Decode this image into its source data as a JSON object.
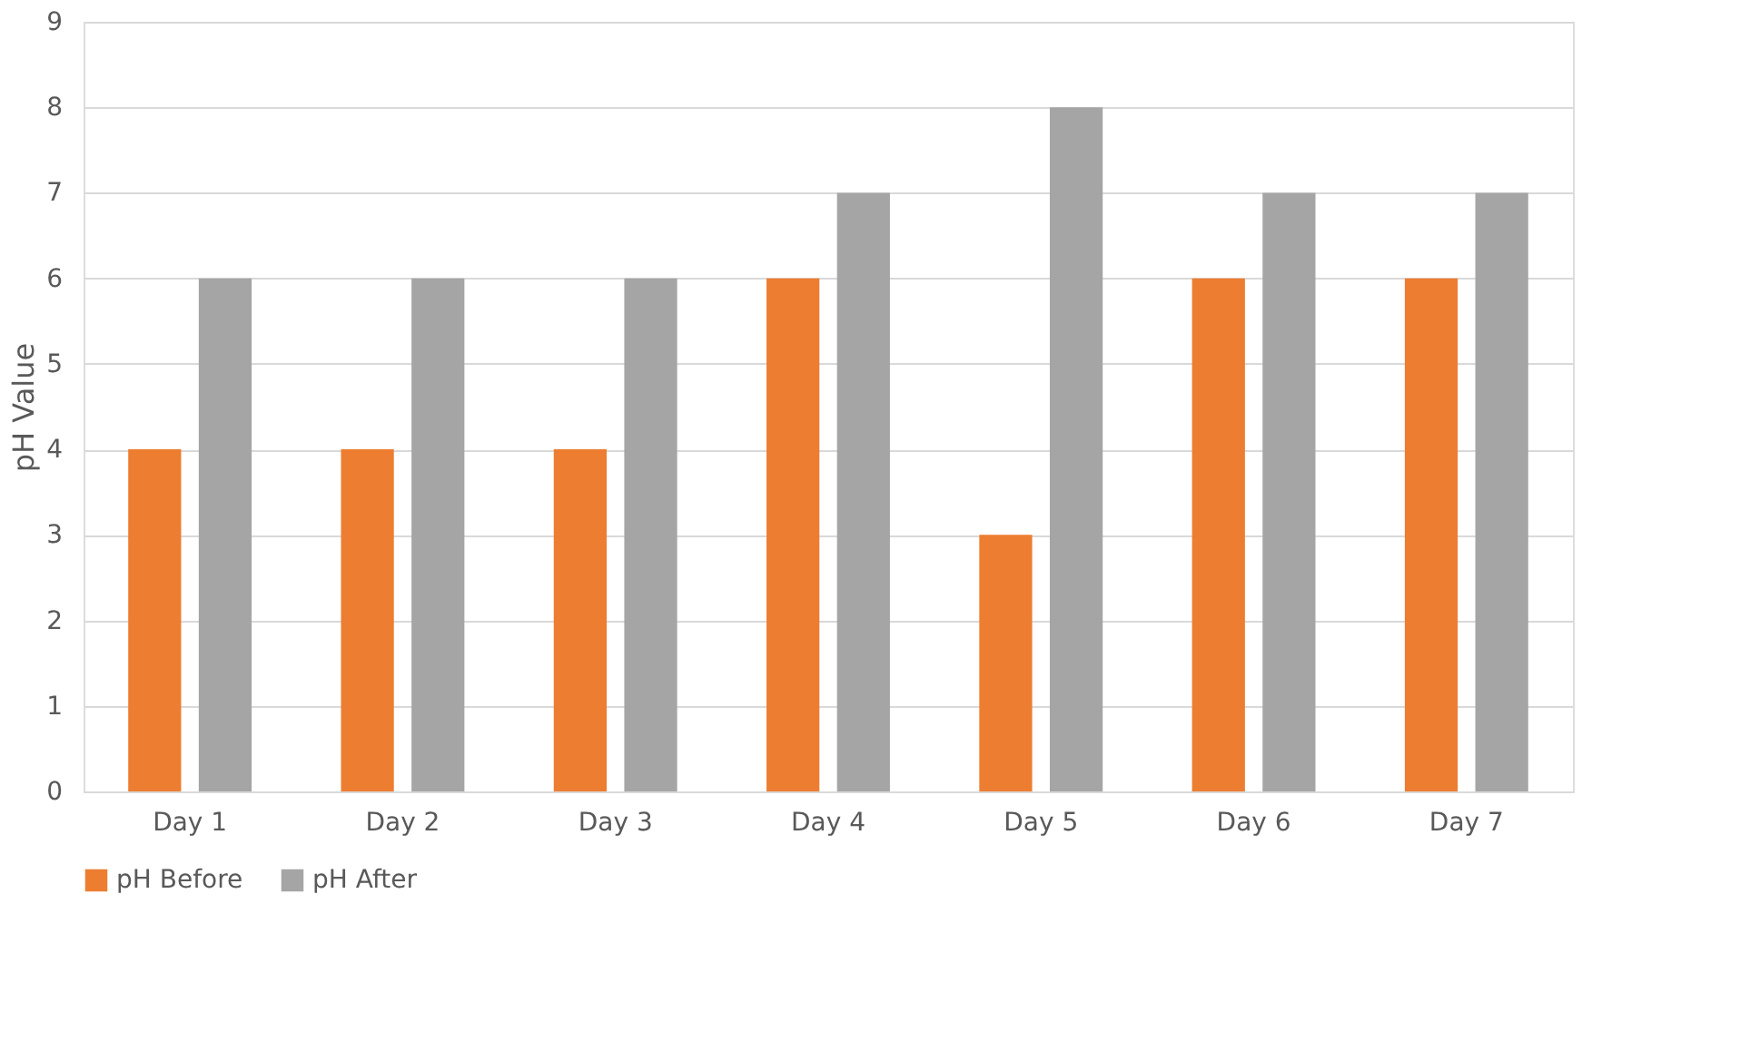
{
  "chart_data": {
    "type": "bar",
    "ylabel": "pH Value",
    "categories": [
      "Day 1",
      "Day 2",
      "Day 3",
      "Day 4",
      "Day 5",
      "Day 6",
      "Day 7"
    ],
    "series": [
      {
        "name": "pH Before",
        "color": "#ed7d31",
        "values": [
          4,
          4,
          4,
          6,
          3,
          6,
          6
        ]
      },
      {
        "name": "pH After",
        "color": "#a5a5a5",
        "values": [
          6,
          6,
          6,
          7,
          8,
          7,
          7
        ]
      }
    ],
    "ylim": [
      0,
      9
    ],
    "yticks": [
      0,
      1,
      2,
      3,
      4,
      5,
      6,
      7,
      8,
      9
    ],
    "grid": "y",
    "legend": "bottom"
  }
}
